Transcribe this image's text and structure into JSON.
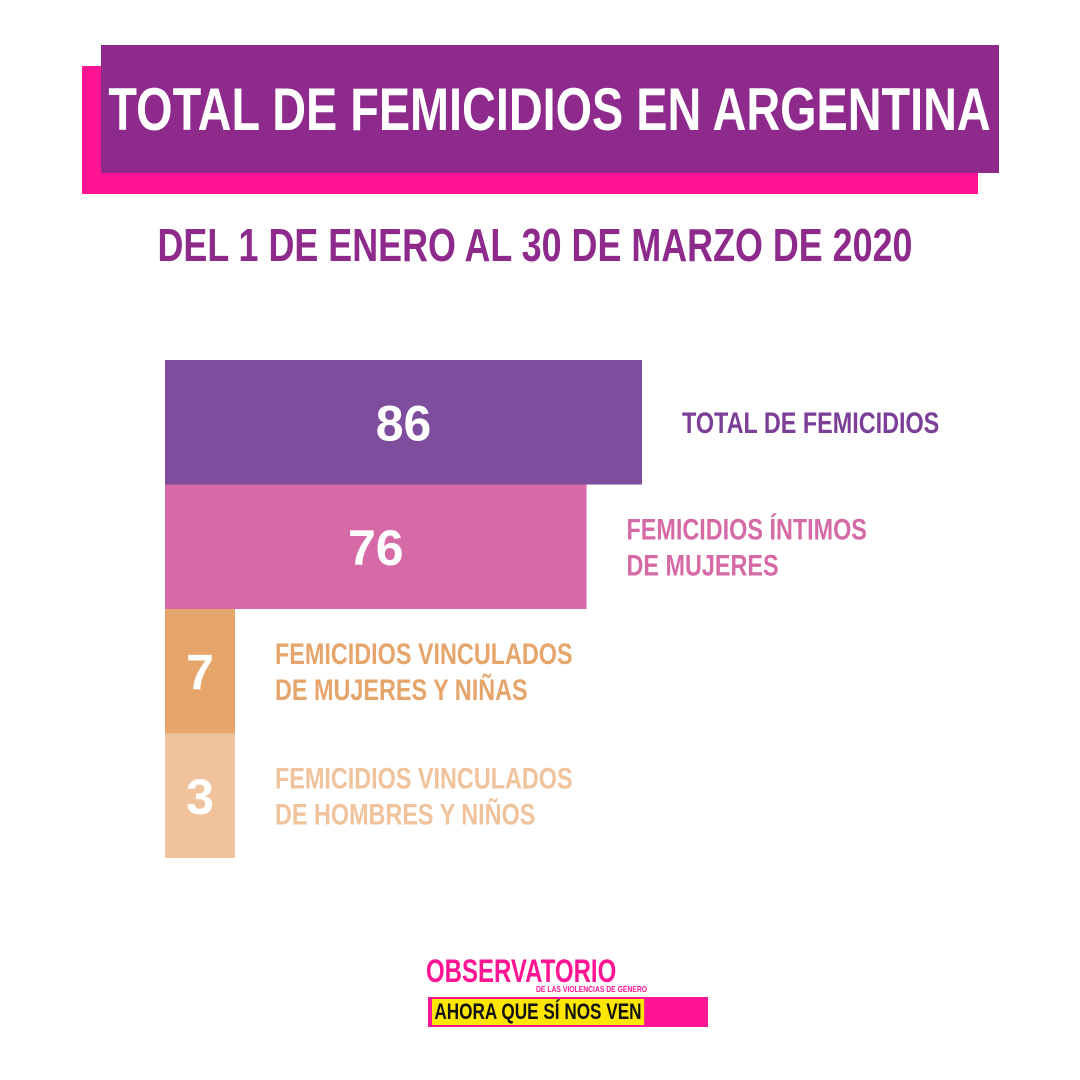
{
  "header": {
    "title": "TOTAL DE FEMICIDIOS EN ARGENTINA",
    "subtitle": "DEL 1 DE ENERO AL 30 DE MARZO DE 2020"
  },
  "colors": {
    "title_bg": "#8e2a8c",
    "title_shadow": "#ff1493",
    "text_purple": "#8e2a8c"
  },
  "chart_data": {
    "type": "bar",
    "orientation": "horizontal",
    "categories": [
      "TOTAL DE FEMICIDIOS",
      "FEMICIDIOS ÍNTIMOS DE MUJERES",
      "FEMICIDIOS VINCULADOS DE MUJERES Y NIÑAS",
      "FEMICIDIOS VINCULADOS DE HOMBRES Y NIÑOS"
    ],
    "label_lines": [
      [
        "TOTAL DE FEMICIDIOS"
      ],
      [
        "FEMICIDIOS ÍNTIMOS",
        "DE MUJERES"
      ],
      [
        "FEMICIDIOS VINCULADOS",
        "DE MUJERES Y NIÑAS"
      ],
      [
        "FEMICIDIOS VINCULADOS",
        "DE HOMBRES Y NIÑOS"
      ]
    ],
    "values": [
      86,
      76,
      7,
      3
    ],
    "bar_colors": [
      "#7e4d9e",
      "#d66aa7",
      "#e5a56b",
      "#f1c39c"
    ],
    "label_colors": [
      "#7b3f98",
      "#d66aa7",
      "#e5a56b",
      "#f1c39c"
    ],
    "data_labels": true,
    "axes_visible": false,
    "grid": false
  },
  "logo": {
    "top": "OBSERVATORIO",
    "sub": "DE LAS VIOLENCIAS DE GÉNERO",
    "bottom": "AHORA QUE SÍ NOS VEN"
  }
}
